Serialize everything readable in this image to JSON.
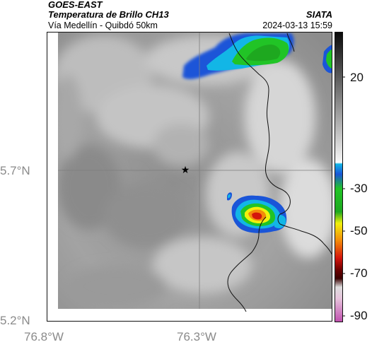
{
  "header": {
    "satellite": "GOES-EAST",
    "product": "Temperatura de Brillo CH13",
    "region": "Vía Medellín - Quibdó 50km",
    "source": "SIATA",
    "datetime": "2024-03-13 15:59"
  },
  "axes": {
    "lat_ticks": [
      "5.7°N",
      "5.2°N"
    ],
    "lon_ticks": [
      "76.8°W",
      "76.3°W"
    ]
  },
  "colorbar": {
    "tick_labels": [
      "20",
      "-30",
      "-50",
      "-70",
      "-90"
    ],
    "colors": {
      "cyan": "#12b6e6",
      "blue": "#1a55d8",
      "green": "#21c426",
      "yellow": "#f1f00c",
      "orange": "#f38a0a",
      "red": "#d4140c",
      "dark": "#3a0000",
      "magenta": "#c04fae"
    }
  },
  "marker": {
    "symbol": "★"
  }
}
